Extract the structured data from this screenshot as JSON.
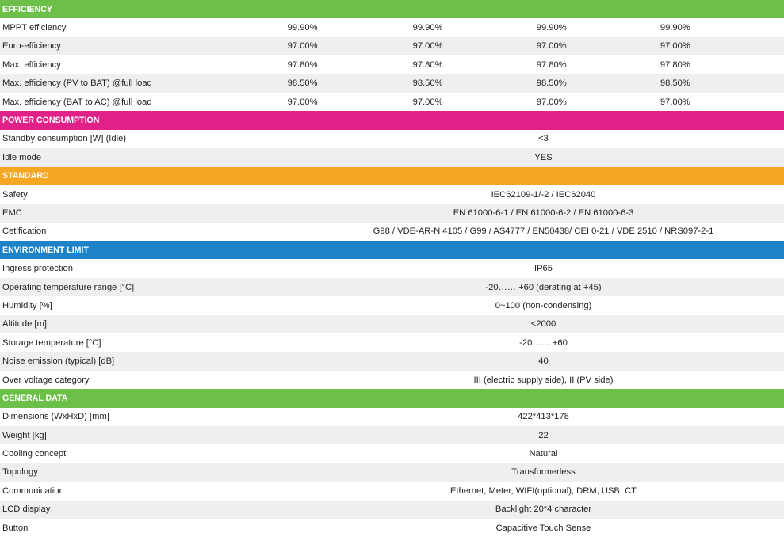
{
  "colors": {
    "efficiency": "#6cc04a",
    "power_consumption": "#e0218a",
    "standard": "#f5a623",
    "environment_limit": "#1e82c9",
    "general_data": "#6cc04a"
  },
  "sections": [
    {
      "title": "EFFICIENCY",
      "rows": [
        {
          "label": "MPPT efficiency",
          "values": [
            "99.90%",
            "99.90%",
            "99.90%",
            "99.90%"
          ]
        },
        {
          "label": "Euro-efficiency",
          "values": [
            "97.00%",
            "97.00%",
            "97.00%",
            "97.00%"
          ]
        },
        {
          "label": "Max. efficiency",
          "values": [
            "97.80%",
            "97.80%",
            "97.80%",
            "97.80%"
          ]
        },
        {
          "label": "Max. efficiency (PV to BAT) @full load",
          "values": [
            "98.50%",
            "98.50%",
            "98.50%",
            "98.50%"
          ]
        },
        {
          "label": "Max. efficiency (BAT to AC) @full load",
          "values": [
            "97.00%",
            "97.00%",
            "97.00%",
            "97.00%"
          ]
        }
      ]
    },
    {
      "title": "POWER CONSUMPTION",
      "rows": [
        {
          "label": "Standby consumption [W] (Idle)",
          "value": "<3"
        },
        {
          "label": "Idle mode",
          "value": "YES"
        }
      ]
    },
    {
      "title": "STANDARD",
      "rows": [
        {
          "label": "Safety",
          "value": "IEC62109-1/-2 / IEC62040"
        },
        {
          "label": "EMC",
          "value": "EN 61000-6-1 / EN 61000-6-2 / EN 61000-6-3"
        },
        {
          "label": "Cetification",
          "value": "G98 /  VDE-AR-N 4105 / G99 / AS4777 / EN50438/ CEI 0-21 / VDE 2510 / NRS097-2-1"
        }
      ]
    },
    {
      "title": "ENVIRONMENT LIMIT",
      "rows": [
        {
          "label": "Ingress protection",
          "value": "IP65"
        },
        {
          "label": "Operating temperature range [°C]",
          "value": "-20…… +60 (derating at +45)"
        },
        {
          "label": "Humidity [%]",
          "value": "0~100 (non-condensing)"
        },
        {
          "label": "Altitude [m]",
          "value": "<2000"
        },
        {
          "label": "Storage temperature [°C]",
          "value": "-20…… +60"
        },
        {
          "label": "Noise emission (typical) [dB]",
          "value": "40"
        },
        {
          "label": "Over voltage category",
          "value": "III (electric supply side), II (PV side)"
        }
      ]
    },
    {
      "title": "GENERAL DATA",
      "rows": [
        {
          "label": "Dimensions (WxHxD) [mm]",
          "value": "422*413*178"
        },
        {
          "label": "Weight [kg]",
          "value": "22"
        },
        {
          "label": "Cooling concept",
          "value": "Natural"
        },
        {
          "label": "Topology",
          "value": "Transformerless"
        },
        {
          "label": "Communication",
          "value": "Ethernet, Meter, WIFI(optional), DRM, USB, CT"
        },
        {
          "label": "LCD display",
          "value": "Backlight 20*4 character"
        },
        {
          "label": "Button",
          "value": "Capacitive Touch Sense"
        }
      ]
    }
  ]
}
